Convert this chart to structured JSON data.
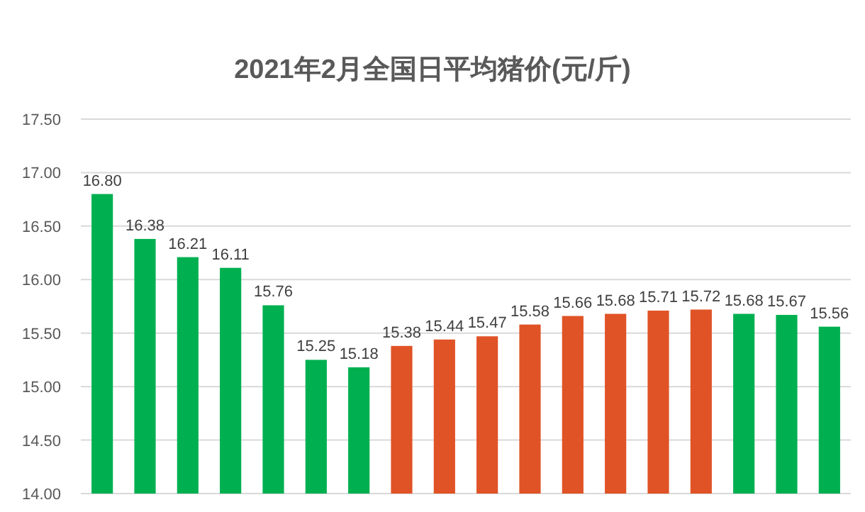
{
  "chart_data": {
    "type": "bar",
    "title": "2021年2月全国日平均猪价(元/斤)",
    "categories": [
      null,
      null,
      null,
      null,
      null,
      null,
      null,
      null,
      null,
      null,
      null,
      null,
      null,
      null,
      null,
      null,
      null,
      null
    ],
    "values": [
      16.8,
      16.38,
      16.21,
      16.11,
      15.76,
      15.25,
      15.18,
      15.38,
      15.44,
      15.47,
      15.58,
      15.66,
      15.68,
      15.71,
      15.72,
      15.68,
      15.67,
      15.56
    ],
    "colors": [
      "#00b050",
      "#00b050",
      "#00b050",
      "#00b050",
      "#00b050",
      "#00b050",
      "#00b050",
      "#e05326",
      "#e05326",
      "#e05326",
      "#e05326",
      "#e05326",
      "#e05326",
      "#e05326",
      "#e05326",
      "#00b050",
      "#00b050",
      "#00b050"
    ],
    "value_labels": [
      "16.80",
      "16.38",
      "16.21",
      "16.11",
      "15.76",
      "15.25",
      "15.18",
      "15.38",
      "15.44",
      "15.47",
      "15.58",
      "15.66",
      "15.68",
      "15.71",
      "15.72",
      "15.68",
      "15.67",
      "15.56"
    ],
    "ylim": [
      14,
      17.5
    ],
    "yticks": [
      {
        "value": 14,
        "label": "14.00"
      },
      {
        "value": 14.5,
        "label": "14.50"
      },
      {
        "value": 15,
        "label": "15.00"
      },
      {
        "value": 15.5,
        "label": "15.50"
      },
      {
        "value": 16,
        "label": "16.00"
      },
      {
        "value": 16.5,
        "label": "16.50"
      },
      {
        "value": 17,
        "label": "17.00"
      },
      {
        "value": 17.5,
        "label": "17.50"
      }
    ],
    "grid": "y"
  }
}
